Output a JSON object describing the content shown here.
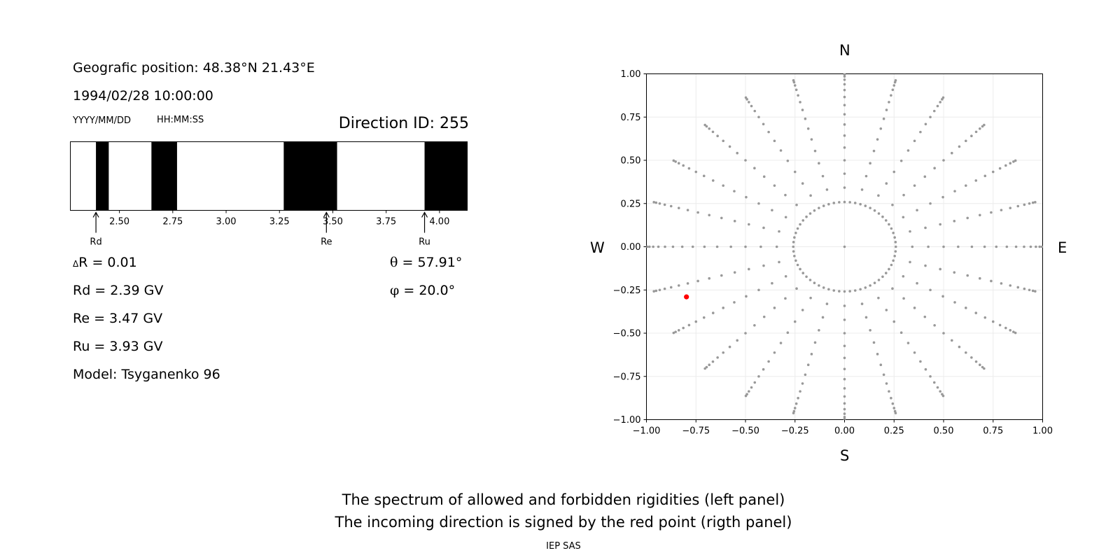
{
  "info": {
    "position": "Geografic position: 48.38°N 21.43°E",
    "datetime": "1994/02/28 10:00:00",
    "date_format": "YYYY/MM/DD",
    "time_format": "HH:MM:SS",
    "direction_id": "Direction ID: 255",
    "delta_r_symbol": "Δ",
    "delta_r": "R = 0.01",
    "rd": "Rd = 2.39 GV",
    "re": "Re = 3.47 GV",
    "ru": "Ru = 3.93 GV",
    "model": "Model: Tsyganenko 96",
    "theta_symbol": "θ",
    "theta": "= 57.91°",
    "phi_symbol": "φ",
    "phi": "= 20.0°"
  },
  "compass": {
    "north": "N",
    "south": "S",
    "west": "W",
    "east": "E"
  },
  "caption": {
    "line1": "The spectrum of allowed and forbidden rigidities (left panel)",
    "line2": "The incoming direction is signed by the red point (rigth panel)",
    "credit": "IEP SAS"
  },
  "chart_data": [
    {
      "type": "bar",
      "description_colors": {
        "forbidden": "#000000",
        "allowed": "#ffffff"
      },
      "xlim": [
        2.27,
        4.13
      ],
      "xticks": [
        2.5,
        2.75,
        3.0,
        3.25,
        3.5,
        3.75,
        4.0
      ],
      "xtick_labels": [
        "2.50",
        "2.75",
        "3.00",
        "3.25",
        "3.50",
        "3.75",
        "4.00"
      ],
      "forbidden_bands": [
        [
          2.39,
          2.45
        ],
        [
          2.65,
          2.77
        ],
        [
          3.27,
          3.52
        ],
        [
          3.93,
          4.13
        ]
      ],
      "markers": [
        {
          "label": "Rd",
          "value": 2.39
        },
        {
          "label": "Re",
          "value": 3.47
        },
        {
          "label": "Ru",
          "value": 3.93
        }
      ]
    },
    {
      "type": "scatter",
      "xlim": [
        -1.0,
        1.0
      ],
      "ylim": [
        -1.0,
        1.0
      ],
      "xticks": [
        -1.0,
        -0.75,
        -0.5,
        -0.25,
        0.0,
        0.25,
        0.5,
        0.75,
        1.0
      ],
      "yticks": [
        -1.0,
        -0.75,
        -0.5,
        -0.25,
        0.0,
        0.25,
        0.5,
        0.75,
        1.0
      ],
      "xtick_labels": [
        "−1.00",
        "−0.75",
        "−0.50",
        "−0.25",
        "0.00",
        "0.25",
        "0.50",
        "0.75",
        "1.00"
      ],
      "ytick_labels": [
        "−1.00",
        "−0.75",
        "−0.50",
        "−0.25",
        "0.00",
        "0.25",
        "0.50",
        "0.75",
        "1.00"
      ],
      "grid": true,
      "point_color": "#999999",
      "highlight_color": "#ff0000",
      "grid_pattern": {
        "azimuth_step_deg": 15,
        "zenith_inner_deg": 15,
        "zenith_inner_step_deg": 10,
        "zenith_outer_step_deg": 5,
        "zenith_outer_start_deg": 20,
        "zenith_max_deg": 85,
        "center_point": true
      },
      "highlight_point": {
        "x": -0.798,
        "y": -0.29
      }
    }
  ]
}
